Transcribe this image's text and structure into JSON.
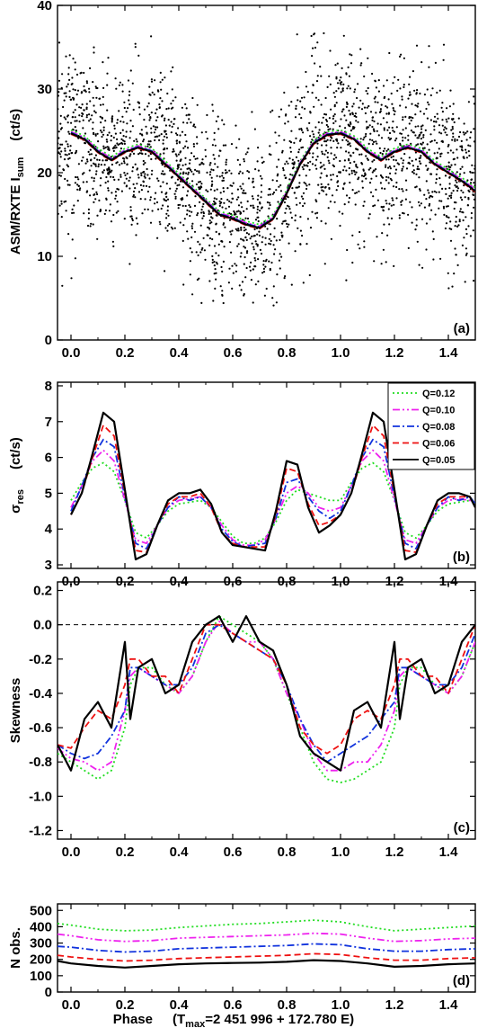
{
  "chart_data": [
    {
      "id": "a",
      "type": "scatter",
      "panel_label": "(a)",
      "ylabel": "ASM/RXTE  I",
      "ylabel_sub": "sum",
      "yunit": "(ct/s)",
      "xlim": [
        -0.05,
        1.5
      ],
      "ylim": [
        0,
        40
      ],
      "xticks": [
        "0.0",
        "0.2",
        "0.4",
        "0.6",
        "0.8",
        "1.0",
        "1.2",
        "1.4"
      ],
      "yticks": [
        "0",
        "10",
        "20",
        "30",
        "40"
      ],
      "scatter_description": "approx. 1700 individual ASM measurements per cycle, spread ~5-37 ct/s around the mean curve",
      "mean_curve": {
        "x": [
          0.0,
          0.05,
          0.1,
          0.15,
          0.2,
          0.25,
          0.3,
          0.35,
          0.4,
          0.45,
          0.5,
          0.55,
          0.6,
          0.65,
          0.7,
          0.75,
          0.8,
          0.85,
          0.9,
          0.95,
          1.0,
          1.05,
          1.1,
          1.15,
          1.2,
          1.25,
          1.3,
          1.35,
          1.4,
          1.45,
          1.5
        ],
        "y": [
          24.7,
          24.0,
          22.5,
          21.5,
          22.5,
          23.0,
          22.5,
          21.0,
          19.5,
          18.0,
          16.5,
          15.0,
          14.5,
          13.8,
          13.4,
          14.5,
          17.5,
          21.0,
          23.5,
          24.5,
          24.7,
          24.0,
          22.5,
          21.5,
          22.5,
          23.0,
          22.5,
          21.0,
          20.0,
          19.0,
          17.8
        ]
      }
    },
    {
      "id": "b",
      "type": "line",
      "panel_label": "(b)",
      "ylabel": "σ",
      "ylabel_sub": "res",
      "yunit": "(ct/s)",
      "xlim": [
        -0.05,
        1.5
      ],
      "ylim": [
        2.9,
        8.1
      ],
      "xticks": [
        "0.0",
        "0.2",
        "0.4",
        "0.6",
        "0.8",
        "1.0",
        "1.2",
        "1.4"
      ],
      "yticks": [
        "3",
        "4",
        "5",
        "6",
        "7",
        "8"
      ],
      "legend_position": "top-right",
      "x": [
        0.0,
        0.04,
        0.08,
        0.12,
        0.16,
        0.2,
        0.24,
        0.28,
        0.32,
        0.36,
        0.4,
        0.44,
        0.48,
        0.52,
        0.56,
        0.6,
        0.64,
        0.68,
        0.72,
        0.76,
        0.8,
        0.84,
        0.88,
        0.92,
        0.96,
        1.0,
        1.04,
        1.08,
        1.12,
        1.16,
        1.2,
        1.24,
        1.28,
        1.32,
        1.36,
        1.4,
        1.44,
        1.48,
        1.5
      ],
      "series": [
        {
          "name": "Q=0.12",
          "color": "#22dd22",
          "dash": "dot",
          "values": [
            4.8,
            5.3,
            5.7,
            5.85,
            5.6,
            4.8,
            3.9,
            3.75,
            4.1,
            4.5,
            4.7,
            4.75,
            4.8,
            4.6,
            4.2,
            3.8,
            3.6,
            3.6,
            3.75,
            4.2,
            4.8,
            5.1,
            5.0,
            4.9,
            4.8,
            4.8,
            5.3,
            5.7,
            5.85,
            5.6,
            4.8,
            3.9,
            3.75,
            4.1,
            4.5,
            4.7,
            4.75,
            4.8,
            4.8
          ]
        },
        {
          "name": "Q=0.10",
          "color": "#ee22ee",
          "dash": "dashdotdot",
          "values": [
            4.6,
            5.2,
            5.9,
            6.2,
            5.9,
            4.8,
            3.7,
            3.6,
            4.1,
            4.6,
            4.8,
            4.85,
            4.9,
            4.6,
            4.1,
            3.7,
            3.55,
            3.55,
            3.7,
            4.3,
            5.0,
            5.2,
            5.0,
            4.6,
            4.5,
            4.6,
            5.2,
            5.9,
            6.2,
            5.9,
            4.8,
            3.7,
            3.6,
            4.1,
            4.6,
            4.8,
            4.85,
            4.8,
            4.7
          ]
        },
        {
          "name": "Q=0.08",
          "color": "#1133dd",
          "dash": "dashdot",
          "values": [
            4.5,
            5.2,
            6.0,
            6.5,
            6.3,
            4.9,
            3.6,
            3.45,
            4.1,
            4.6,
            4.9,
            4.8,
            4.9,
            4.6,
            4.0,
            3.65,
            3.5,
            3.55,
            3.6,
            4.3,
            5.3,
            5.4,
            4.9,
            4.5,
            4.3,
            4.5,
            5.2,
            6.0,
            6.5,
            6.3,
            4.9,
            3.6,
            3.45,
            4.1,
            4.6,
            4.9,
            4.8,
            4.9,
            4.7
          ]
        },
        {
          "name": "Q=0.06",
          "color": "#ee1111",
          "dash": "dash",
          "values": [
            4.4,
            5.0,
            6.0,
            6.9,
            6.6,
            5.0,
            3.4,
            3.35,
            4.1,
            4.7,
            4.9,
            4.9,
            5.0,
            4.6,
            3.9,
            3.6,
            3.5,
            3.5,
            3.5,
            4.4,
            5.7,
            5.6,
            4.7,
            4.1,
            4.2,
            4.4,
            5.0,
            6.0,
            6.9,
            6.6,
            5.0,
            3.4,
            3.35,
            4.1,
            4.7,
            4.9,
            4.9,
            4.9,
            4.6
          ]
        },
        {
          "name": "Q=0.05",
          "color": "#000000",
          "dash": "solid",
          "values": [
            4.4,
            5.0,
            6.1,
            7.25,
            7.0,
            5.1,
            3.15,
            3.3,
            4.1,
            4.8,
            5.0,
            5.0,
            5.1,
            4.7,
            3.9,
            3.55,
            3.5,
            3.45,
            3.4,
            4.5,
            5.9,
            5.8,
            4.6,
            3.9,
            4.1,
            4.4,
            5.0,
            6.1,
            7.25,
            7.0,
            5.1,
            3.15,
            3.3,
            4.1,
            4.8,
            5.0,
            5.0,
            4.9,
            4.6
          ]
        }
      ]
    },
    {
      "id": "c",
      "type": "line",
      "panel_label": "(c)",
      "ylabel": "Skewness",
      "xlim": [
        -0.05,
        1.5
      ],
      "ylim": [
        -1.25,
        0.25
      ],
      "xticks": [
        "0.0",
        "0.2",
        "0.4",
        "0.6",
        "0.8",
        "1.0",
        "1.2",
        "1.4"
      ],
      "yticks": [
        "0.2",
        "0.0",
        "-0.2",
        "-0.4",
        "-0.6",
        "-0.8",
        "-1.0",
        "-1.2"
      ],
      "reference_line": 0.0,
      "x": [
        -0.05,
        0.0,
        0.05,
        0.1,
        0.15,
        0.2,
        0.22,
        0.25,
        0.3,
        0.35,
        0.4,
        0.45,
        0.5,
        0.55,
        0.6,
        0.65,
        0.7,
        0.75,
        0.8,
        0.85,
        0.9,
        0.95,
        1.0,
        1.05,
        1.1,
        1.15,
        1.2,
        1.22,
        1.25,
        1.3,
        1.35,
        1.4,
        1.45,
        1.5
      ],
      "series": [
        {
          "name": "Q=0.12",
          "color": "#22dd22",
          "dash": "dot",
          "values": [
            -0.75,
            -0.8,
            -0.85,
            -0.9,
            -0.85,
            -0.6,
            -0.35,
            -0.25,
            -0.25,
            -0.35,
            -0.4,
            -0.3,
            -0.1,
            0.05,
            0.0,
            -0.05,
            -0.1,
            -0.2,
            -0.4,
            -0.6,
            -0.8,
            -0.9,
            -0.92,
            -0.9,
            -0.85,
            -0.8,
            -0.6,
            -0.35,
            -0.25,
            -0.25,
            -0.35,
            -0.4,
            -0.3,
            -0.1
          ]
        },
        {
          "name": "Q=0.10",
          "color": "#ee22ee",
          "dash": "dashdotdot",
          "values": [
            -0.72,
            -0.78,
            -0.8,
            -0.85,
            -0.8,
            -0.5,
            -0.3,
            -0.25,
            -0.3,
            -0.35,
            -0.4,
            -0.3,
            -0.1,
            0.02,
            -0.05,
            -0.1,
            -0.1,
            -0.2,
            -0.4,
            -0.55,
            -0.75,
            -0.85,
            -0.85,
            -0.8,
            -0.8,
            -0.7,
            -0.5,
            -0.3,
            -0.25,
            -0.3,
            -0.35,
            -0.4,
            -0.3,
            -0.1
          ]
        },
        {
          "name": "Q=0.08",
          "color": "#1133dd",
          "dash": "dashdot",
          "values": [
            -0.7,
            -0.75,
            -0.78,
            -0.75,
            -0.65,
            -0.5,
            -0.25,
            -0.25,
            -0.3,
            -0.35,
            -0.35,
            -0.25,
            -0.05,
            0.0,
            -0.05,
            -0.1,
            -0.15,
            -0.2,
            -0.35,
            -0.55,
            -0.7,
            -0.8,
            -0.75,
            -0.7,
            -0.65,
            -0.55,
            -0.45,
            -0.25,
            -0.25,
            -0.3,
            -0.35,
            -0.35,
            -0.25,
            -0.05
          ]
        },
        {
          "name": "Q=0.06",
          "color": "#ee1111",
          "dash": "dash",
          "values": [
            -0.7,
            -0.72,
            -0.6,
            -0.5,
            -0.55,
            -0.35,
            -0.2,
            -0.2,
            -0.3,
            -0.3,
            -0.4,
            -0.2,
            0.0,
            0.0,
            -0.05,
            -0.1,
            -0.15,
            -0.2,
            -0.35,
            -0.6,
            -0.7,
            -0.75,
            -0.7,
            -0.55,
            -0.5,
            -0.55,
            -0.35,
            -0.2,
            -0.2,
            -0.3,
            -0.3,
            -0.4,
            -0.2,
            0.0
          ]
        },
        {
          "name": "Q=0.05",
          "color": "#000000",
          "dash": "solid",
          "values": [
            -0.7,
            -0.85,
            -0.55,
            -0.45,
            -0.6,
            -0.1,
            -0.55,
            -0.25,
            -0.2,
            -0.4,
            -0.35,
            -0.1,
            0.0,
            0.05,
            -0.1,
            0.05,
            -0.1,
            -0.15,
            -0.35,
            -0.65,
            -0.75,
            -0.8,
            -0.85,
            -0.5,
            -0.45,
            -0.6,
            -0.1,
            -0.55,
            -0.25,
            -0.2,
            -0.4,
            -0.35,
            -0.1,
            0.0
          ]
        }
      ]
    },
    {
      "id": "d",
      "type": "line",
      "panel_label": "(d)",
      "ylabel": "N obs.",
      "xlabel": "Phase",
      "xlabel_extra": "(T",
      "xlabel_sub": "max",
      "xlabel_tail": "=2 451 996 + 172.780 E)",
      "xlim": [
        -0.05,
        1.5
      ],
      "ylim": [
        0,
        540
      ],
      "xticks": [
        "0.0",
        "0.2",
        "0.4",
        "0.6",
        "0.8",
        "1.0",
        "1.2",
        "1.4"
      ],
      "yticks": [
        "0",
        "100",
        "200",
        "300",
        "400",
        "500"
      ],
      "x": [
        -0.05,
        0.0,
        0.1,
        0.2,
        0.3,
        0.4,
        0.5,
        0.6,
        0.7,
        0.8,
        0.9,
        1.0,
        1.1,
        1.2,
        1.3,
        1.4,
        1.5
      ],
      "series": [
        {
          "name": "Q=0.12",
          "color": "#22dd22",
          "dash": "dot",
          "values": [
            420,
            410,
            385,
            375,
            380,
            395,
            405,
            415,
            420,
            430,
            440,
            430,
            400,
            375,
            385,
            395,
            405
          ]
        },
        {
          "name": "Q=0.10",
          "color": "#ee22ee",
          "dash": "dashdotdot",
          "values": [
            355,
            345,
            320,
            310,
            315,
            330,
            335,
            340,
            345,
            350,
            360,
            355,
            330,
            310,
            315,
            325,
            330
          ]
        },
        {
          "name": "Q=0.08",
          "color": "#1133dd",
          "dash": "dashdot",
          "values": [
            280,
            275,
            255,
            245,
            250,
            265,
            270,
            275,
            280,
            285,
            295,
            290,
            265,
            250,
            250,
            260,
            265
          ]
        },
        {
          "name": "Q=0.06",
          "color": "#ee1111",
          "dash": "dash",
          "values": [
            225,
            215,
            200,
            190,
            195,
            205,
            210,
            215,
            220,
            225,
            235,
            230,
            210,
            195,
            195,
            205,
            210
          ]
        },
        {
          "name": "Q=0.05",
          "color": "#000000",
          "dash": "solid",
          "values": [
            190,
            175,
            160,
            150,
            160,
            170,
            175,
            178,
            180,
            185,
            195,
            190,
            175,
            155,
            160,
            170,
            175
          ]
        }
      ]
    }
  ]
}
